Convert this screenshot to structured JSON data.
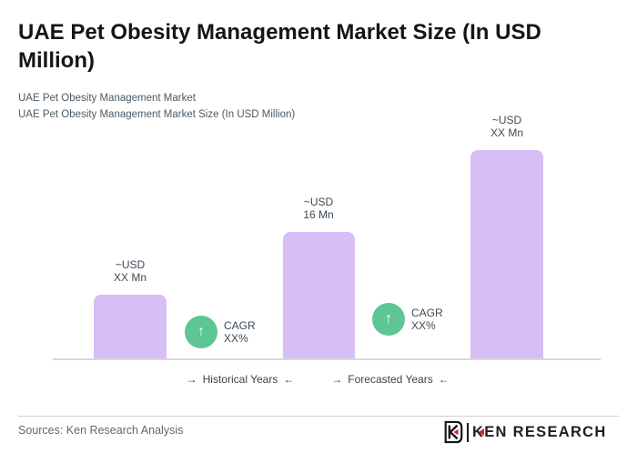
{
  "header": {
    "title": "UAE Pet Obesity Management Market Size (In USD Million)"
  },
  "subtitle": {
    "line1": "UAE Pet Obesity Management Market",
    "line2": "UAE Pet Obesity Management Market Size (In USD Million)"
  },
  "chart_data": {
    "type": "bar",
    "title": "UAE Pet Obesity Management Market Size (In USD Million)",
    "unit": "USD Million",
    "grid": false,
    "legend_position": "none",
    "bars": [
      {
        "label_line1": "~USD",
        "label_line2": "XX Mn",
        "value": null,
        "relative_height": 0.31
      },
      {
        "label_line1": "~USD",
        "label_line2": "16 Mn",
        "value": 16,
        "relative_height": 0.61
      },
      {
        "label_line1": "~USD",
        "label_line2": "XX Mn",
        "value": null,
        "relative_height": 1.0
      }
    ],
    "annotations": [
      {
        "icon": "up-arrow-circle-icon",
        "arrow_glyph": "↑",
        "line1": "CAGR",
        "line2": "XX%"
      },
      {
        "icon": "up-arrow-circle-icon",
        "arrow_glyph": "↑",
        "line1": "CAGR",
        "line2": "XX%"
      }
    ],
    "x_axis_groups": [
      {
        "arrow_right": "→",
        "label": "Historical Years",
        "arrow_left": "←"
      },
      {
        "arrow_right": "→",
        "label": "Forecasted Years",
        "arrow_left": "←"
      }
    ],
    "colors": {
      "bar": "#d7bef5",
      "cagr_circle": "#5ec594",
      "axis_line": "#d8d8d8",
      "logo_red": "#da1f2b"
    }
  },
  "footer": {
    "sources": "Sources: Ken Research Analysis",
    "logo_text": "KEN RESEARCH"
  }
}
